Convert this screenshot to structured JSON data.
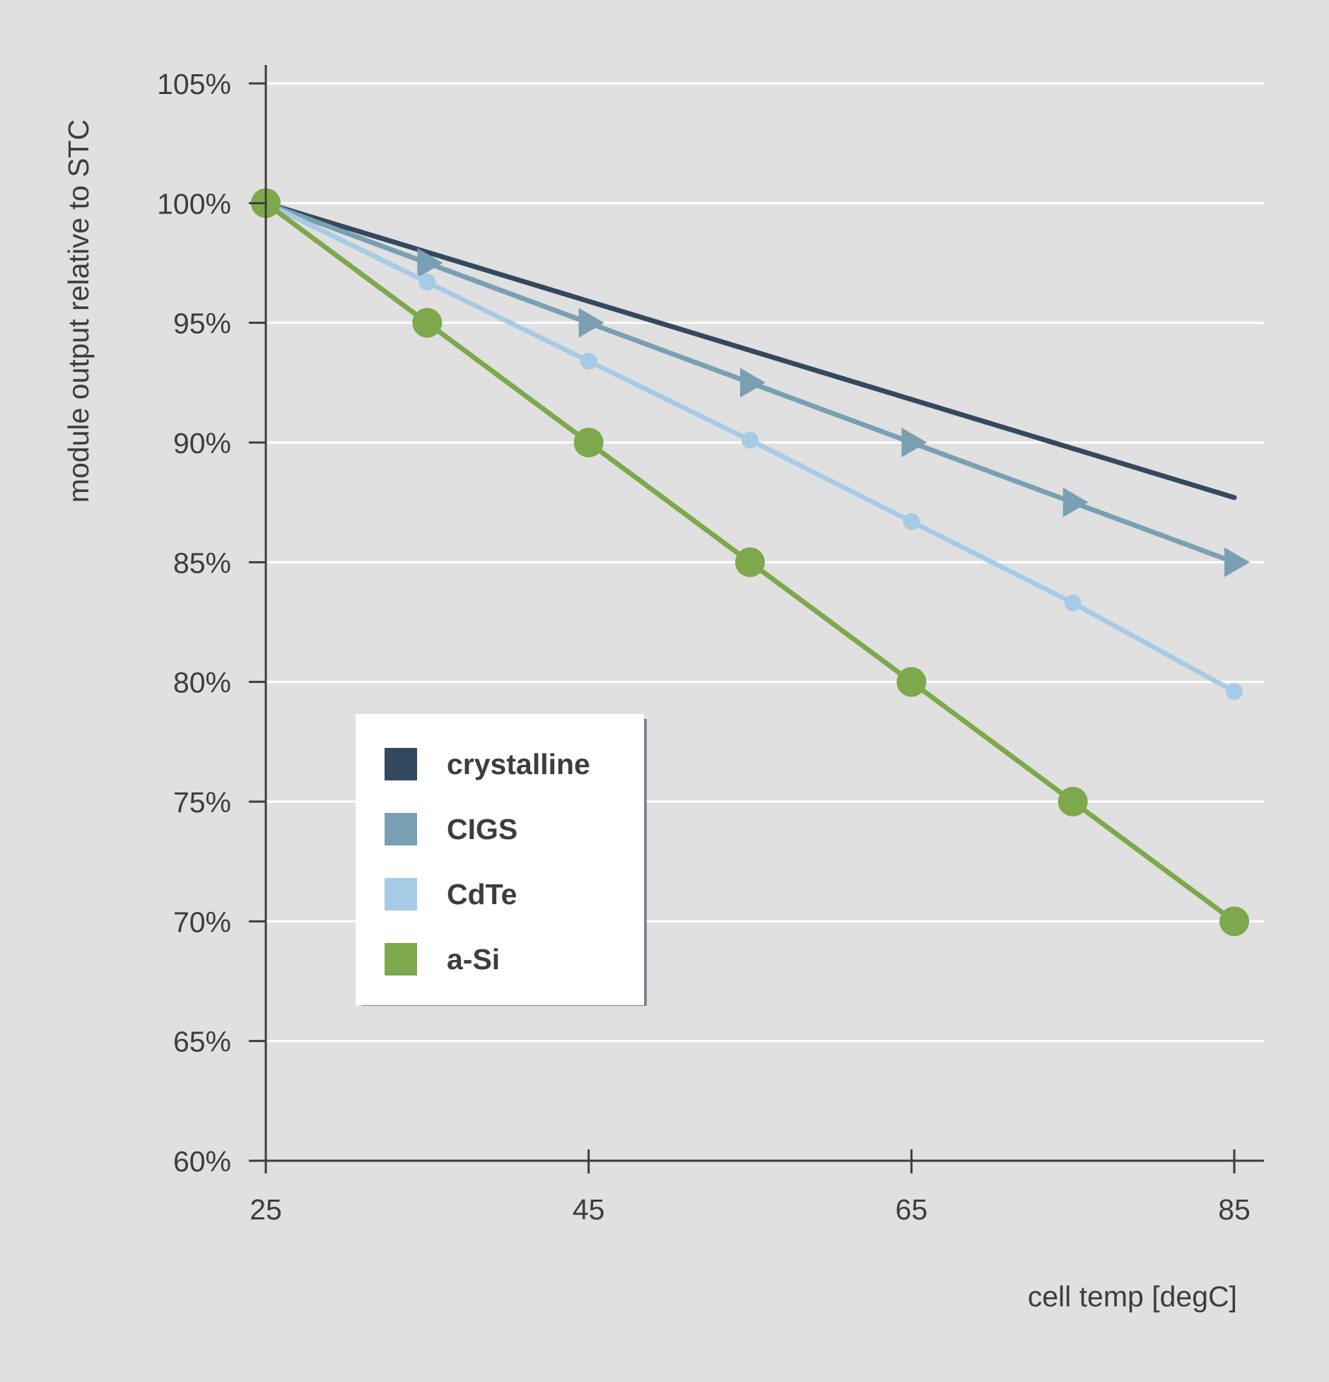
{
  "chart_data": {
    "type": "line",
    "title": "",
    "xlabel": "cell temp [degC]",
    "ylabel": "module output relative to STC",
    "xlim": [
      25,
      85
    ],
    "ylim": [
      60,
      105
    ],
    "x_ticks": [
      25,
      45,
      65,
      85
    ],
    "x_tick_labels": [
      "25",
      "45",
      "65",
      "85"
    ],
    "y_ticks": [
      60,
      65,
      70,
      75,
      80,
      85,
      90,
      95,
      100,
      105
    ],
    "y_tick_labels": [
      "60%",
      "65%",
      "70%",
      "75%",
      "80%",
      "85%",
      "90%",
      "95%",
      "100%",
      "105%"
    ],
    "grid": "horizontal",
    "legend_position": "bottom-left",
    "series": [
      {
        "name": "crystalline",
        "color": "#34495e",
        "marker": "none",
        "x": [
          25,
          85
        ],
        "values": [
          100,
          87.7
        ]
      },
      {
        "name": "CIGS",
        "color": "#7a9fb3",
        "marker": "triangle",
        "x": [
          25,
          35,
          45,
          55,
          65,
          75,
          85
        ],
        "values": [
          100,
          97.5,
          95,
          92.5,
          90,
          87.5,
          85
        ]
      },
      {
        "name": "CdTe",
        "color": "#a8cbe5",
        "marker": "small-circle",
        "x": [
          25,
          35,
          45,
          55,
          65,
          75,
          85
        ],
        "values": [
          100,
          96.7,
          93.4,
          90.1,
          86.7,
          83.3,
          79.6
        ]
      },
      {
        "name": "a-Si",
        "color": "#7da84b",
        "marker": "large-circle",
        "x": [
          25,
          35,
          45,
          55,
          65,
          75,
          85
        ],
        "values": [
          100,
          95,
          90,
          85,
          80,
          75,
          70
        ]
      }
    ]
  }
}
